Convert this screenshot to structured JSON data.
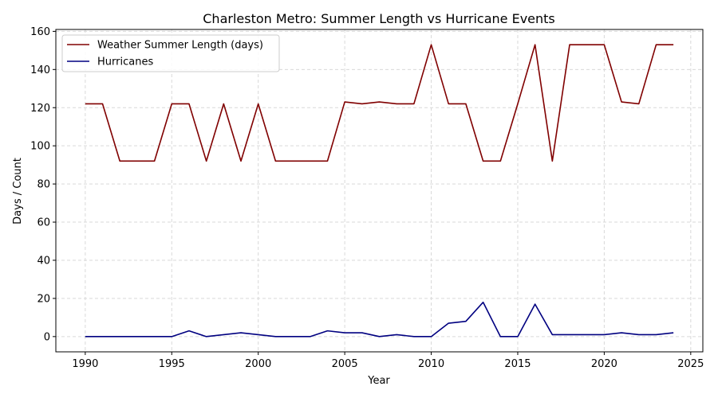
{
  "chart_data": {
    "type": "line",
    "title": "Charleston Metro: Summer Length vs Hurricane Events",
    "xlabel": "Year",
    "ylabel": "Days / Count",
    "xlim": [
      1988.3,
      2025.7
    ],
    "ylim": [
      -8,
      161
    ],
    "xticks": [
      1990,
      1995,
      2000,
      2005,
      2010,
      2015,
      2020,
      2025
    ],
    "yticks": [
      0,
      20,
      40,
      60,
      80,
      100,
      120,
      140,
      160
    ],
    "grid": true,
    "legend_position": "top-left",
    "x": [
      1990,
      1991,
      1992,
      1993,
      1994,
      1995,
      1996,
      1997,
      1998,
      1999,
      2000,
      2001,
      2002,
      2003,
      2004,
      2005,
      2006,
      2007,
      2008,
      2009,
      2010,
      2011,
      2012,
      2013,
      2014,
      2015,
      2016,
      2017,
      2018,
      2019,
      2020,
      2021,
      2022,
      2023,
      2024
    ],
    "series": [
      {
        "name": "Weather Summer Length (days)",
        "color": "#800000",
        "values": [
          122,
          122,
          92,
          92,
          92,
          122,
          122,
          92,
          122,
          92,
          122,
          92,
          92,
          92,
          92,
          123,
          122,
          123,
          122,
          122,
          153,
          122,
          122,
          92,
          92,
          122,
          153,
          92,
          153,
          153,
          153,
          123,
          122,
          153,
          153
        ]
      },
      {
        "name": "Hurricanes",
        "color": "#000080",
        "values": [
          0,
          0,
          0,
          0,
          0,
          0,
          3,
          0,
          1,
          2,
          1,
          0,
          0,
          0,
          3,
          2,
          2,
          0,
          1,
          0,
          0,
          7,
          8,
          18,
          0,
          0,
          17,
          1,
          1,
          1,
          1,
          2,
          1,
          1,
          2
        ]
      }
    ]
  }
}
